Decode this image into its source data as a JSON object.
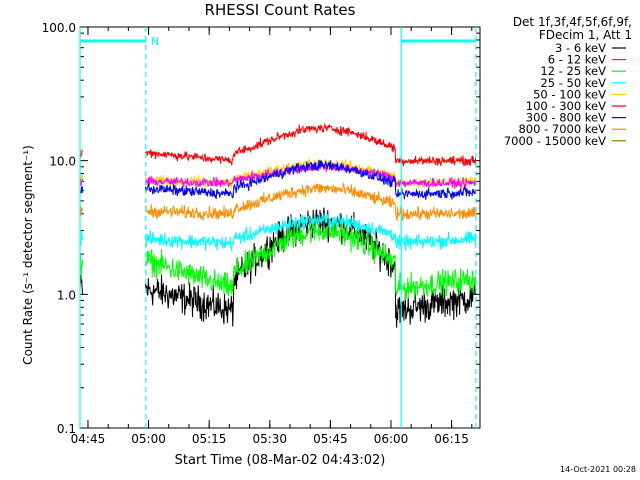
{
  "chart_data": {
    "type": "line",
    "title": "RHESSI Count Rates",
    "xlabel": "Start Time (08-Mar-02 04:43:02)",
    "ylabel": "Count Rate (s⁻¹ detector segment⁻¹)",
    "y_scale": "log",
    "ylim": [
      0.1,
      100
    ],
    "y_ticks": [
      "0.1",
      "1.0",
      "10.0",
      "100.0"
    ],
    "x_ticks": [
      "04:45",
      "05:00",
      "05:15",
      "05:30",
      "05:45",
      "06:00",
      "06:15"
    ],
    "x_tick_minutes": [
      1.97,
      16.97,
      31.97,
      46.97,
      61.97,
      76.97,
      91.97
    ],
    "xlim_minutes": [
      0,
      99
    ],
    "data_gap_minutes": [
      0.7,
      16.2
    ],
    "legend_header": [
      "Det 1f,3f,4f,5f,6f,9f,",
      "FDecim 1, Att 1"
    ],
    "legend_placement": "right, outside plot",
    "series": [
      {
        "name": "3 - 6 keV",
        "color": "#000000",
        "levels": {
          "start": 1.1,
          "min": 0.75,
          "peak": 3.5,
          "end": 0.95
        }
      },
      {
        "name": "6 - 12 keV",
        "color": "#ff00ff",
        "levels": {
          "start": 7.0,
          "min": 6.8,
          "peak": 9.0,
          "end": 6.8
        }
      },
      {
        "name": "12 - 25 keV",
        "color": "#00ff00",
        "levels": {
          "start": 1.8,
          "min": 1.1,
          "peak": 3.0,
          "end": 1.3
        }
      },
      {
        "name": "25 - 50 keV",
        "color": "#00ffff",
        "levels": {
          "start": 2.6,
          "min": 2.4,
          "peak": 3.6,
          "end": 2.6
        }
      },
      {
        "name": "50 - 100 keV",
        "color": "#ffd700",
        "levels": {
          "start": 7.2,
          "min": 6.8,
          "peak": 9.5,
          "end": 7.0
        }
      },
      {
        "name": "100 - 300 keV",
        "color": "#ff0000",
        "levels": {
          "start": 11.5,
          "min": 10.0,
          "peak": 17.5,
          "end": 10.0
        }
      },
      {
        "name": "300 - 800 keV",
        "color": "#0000ff",
        "levels": {
          "start": 6.2,
          "min": 5.6,
          "peak": 9.2,
          "end": 5.8
        }
      },
      {
        "name": "800 - 7000 keV",
        "color": "#ff8c00",
        "levels": {
          "start": 4.2,
          "min": 4.0,
          "peak": 6.2,
          "end": 4.0
        }
      },
      {
        "name": "7000 - 15000 keV",
        "color": "#808000",
        "levels": {
          "start": 5.5,
          "min": 5.5,
          "peak": 6.0,
          "end": 5.5
        }
      }
    ],
    "annotations": [
      {
        "text": "N",
        "color": "#00ffff"
      }
    ],
    "vertical_markers_minutes": {
      "solid": [
        0.0,
        79.5
      ],
      "dashed": [
        16.3,
        98.0
      ]
    }
  },
  "footer": {
    "date": "14-Oct-2021 00:28"
  }
}
